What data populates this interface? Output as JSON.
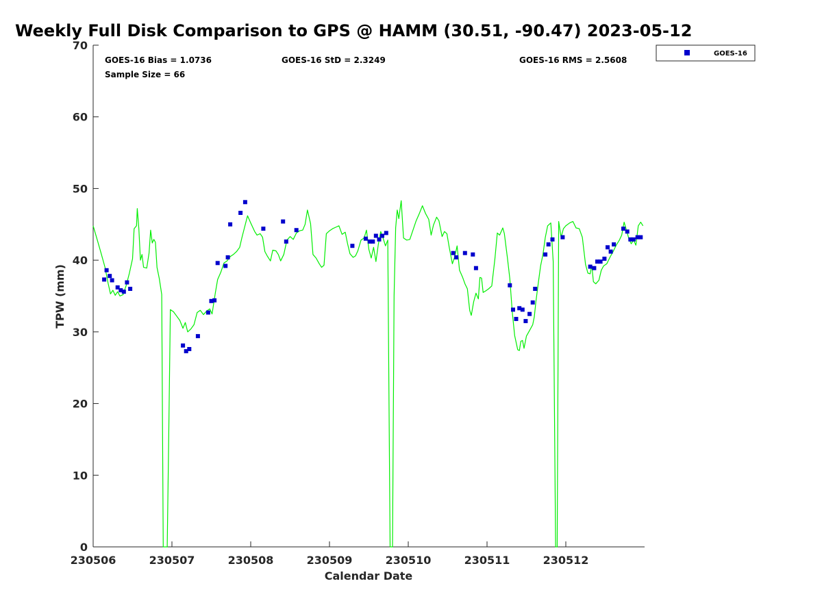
{
  "chart_data": {
    "type": "scatter",
    "title": "Weekly Full Disk Comparison to GPS @ HAMM (30.51, -90.47) 2023-05-12",
    "xlabel": "Calendar Date",
    "ylabel": "TPW (mm)",
    "x_tick_labels": [
      "230506",
      "230507",
      "230508",
      "230509",
      "230510",
      "230511",
      "230512"
    ],
    "y_tick_labels": [
      "0",
      "10",
      "20",
      "30",
      "40",
      "50",
      "60",
      "70"
    ],
    "xlim": [
      0,
      7
    ],
    "ylim": [
      0,
      70
    ],
    "grid": false,
    "legend_position": "top-right",
    "stats": {
      "bias": "GOES-16 Bias = 1.0736",
      "std": "GOES-16 StD = 2.3249",
      "rms": "GOES-16 RMS = 2.5608",
      "sample": "Sample Size = 66"
    },
    "colors": {
      "goes": "#0000cc",
      "gps": "#00ee00",
      "axis": "#262626"
    },
    "series": [
      {
        "name": "GOES-16",
        "marker": "square",
        "points": [
          [
            0.14,
            37.3
          ],
          [
            0.17,
            38.6
          ],
          [
            0.21,
            37.8
          ],
          [
            0.24,
            37.2
          ],
          [
            0.31,
            36.2
          ],
          [
            0.35,
            35.8
          ],
          [
            0.39,
            35.6
          ],
          [
            0.43,
            36.9
          ],
          [
            0.47,
            36.0
          ],
          [
            1.14,
            28.1
          ],
          [
            1.18,
            27.3
          ],
          [
            1.22,
            27.6
          ],
          [
            1.33,
            29.4
          ],
          [
            1.46,
            32.7
          ],
          [
            1.5,
            34.3
          ],
          [
            1.54,
            34.4
          ],
          [
            1.58,
            39.6
          ],
          [
            1.68,
            39.2
          ],
          [
            1.71,
            40.4
          ],
          [
            1.74,
            45.0
          ],
          [
            1.87,
            46.6
          ],
          [
            1.93,
            48.1
          ],
          [
            2.16,
            44.4
          ],
          [
            2.41,
            45.4
          ],
          [
            2.45,
            42.6
          ],
          [
            2.58,
            44.2
          ],
          [
            3.29,
            42.0
          ],
          [
            3.46,
            43.0
          ],
          [
            3.51,
            42.6
          ],
          [
            3.55,
            42.6
          ],
          [
            3.59,
            43.4
          ],
          [
            3.63,
            42.9
          ],
          [
            3.67,
            43.4
          ],
          [
            3.72,
            43.8
          ],
          [
            4.57,
            41.0
          ],
          [
            4.61,
            40.4
          ],
          [
            4.72,
            41.0
          ],
          [
            4.82,
            40.8
          ],
          [
            4.86,
            38.9
          ],
          [
            5.29,
            36.5
          ],
          [
            5.33,
            33.1
          ],
          [
            5.37,
            31.8
          ],
          [
            5.41,
            33.3
          ],
          [
            5.45,
            33.1
          ],
          [
            5.49,
            31.5
          ],
          [
            5.54,
            32.5
          ],
          [
            5.58,
            34.1
          ],
          [
            5.61,
            36.0
          ],
          [
            5.74,
            40.8
          ],
          [
            5.78,
            42.2
          ],
          [
            5.83,
            42.9
          ],
          [
            5.96,
            43.2
          ],
          [
            6.31,
            39.1
          ],
          [
            6.36,
            38.9
          ],
          [
            6.4,
            39.8
          ],
          [
            6.44,
            39.8
          ],
          [
            6.49,
            40.2
          ],
          [
            6.53,
            41.8
          ],
          [
            6.57,
            41.2
          ],
          [
            6.61,
            42.2
          ],
          [
            6.73,
            44.4
          ],
          [
            6.78,
            44.0
          ],
          [
            6.82,
            42.9
          ],
          [
            6.86,
            42.9
          ],
          [
            6.91,
            43.2
          ],
          [
            6.95,
            43.2
          ]
        ]
      },
      {
        "name": "GPS",
        "line": true,
        "points": [
          [
            0.0,
            44.8
          ],
          [
            0.05,
            42.9
          ],
          [
            0.1,
            41.0
          ],
          [
            0.15,
            39.0
          ],
          [
            0.19,
            36.8
          ],
          [
            0.22,
            35.3
          ],
          [
            0.25,
            35.8
          ],
          [
            0.28,
            35.1
          ],
          [
            0.31,
            35.6
          ],
          [
            0.34,
            35.0
          ],
          [
            0.38,
            35.2
          ],
          [
            0.42,
            36.5
          ],
          [
            0.46,
            38.2
          ],
          [
            0.5,
            40.2
          ],
          [
            0.52,
            44.4
          ],
          [
            0.55,
            44.8
          ],
          [
            0.56,
            47.2
          ],
          [
            0.58,
            44.4
          ],
          [
            0.6,
            40.0
          ],
          [
            0.62,
            40.8
          ],
          [
            0.64,
            39.0
          ],
          [
            0.68,
            38.9
          ],
          [
            0.71,
            41.0
          ],
          [
            0.73,
            44.2
          ],
          [
            0.75,
            42.4
          ],
          [
            0.77,
            42.9
          ],
          [
            0.79,
            42.5
          ],
          [
            0.81,
            39.0
          ],
          [
            0.84,
            37.4
          ],
          [
            0.87,
            35.2
          ],
          [
            0.89,
            0.0
          ],
          [
            0.94,
            0.0
          ],
          [
            0.96,
            16.0
          ],
          [
            0.98,
            33.1
          ],
          [
            1.02,
            32.8
          ],
          [
            1.06,
            32.2
          ],
          [
            1.1,
            31.6
          ],
          [
            1.14,
            30.5
          ],
          [
            1.17,
            31.3
          ],
          [
            1.2,
            30.0
          ],
          [
            1.24,
            30.4
          ],
          [
            1.28,
            31.0
          ],
          [
            1.32,
            32.7
          ],
          [
            1.36,
            33.0
          ],
          [
            1.4,
            32.4
          ],
          [
            1.44,
            32.9
          ],
          [
            1.48,
            33.2
          ],
          [
            1.51,
            32.5
          ],
          [
            1.55,
            35.4
          ],
          [
            1.58,
            37.3
          ],
          [
            1.62,
            38.3
          ],
          [
            1.66,
            39.6
          ],
          [
            1.7,
            39.9
          ],
          [
            1.74,
            40.5
          ],
          [
            1.78,
            40.8
          ],
          [
            1.82,
            41.2
          ],
          [
            1.86,
            41.8
          ],
          [
            1.89,
            43.2
          ],
          [
            1.92,
            44.5
          ],
          [
            1.96,
            46.2
          ],
          [
            2.0,
            45.2
          ],
          [
            2.05,
            44.0
          ],
          [
            2.08,
            43.5
          ],
          [
            2.12,
            43.7
          ],
          [
            2.15,
            43.2
          ],
          [
            2.18,
            41.2
          ],
          [
            2.21,
            40.6
          ],
          [
            2.25,
            39.9
          ],
          [
            2.28,
            41.4
          ],
          [
            2.32,
            41.3
          ],
          [
            2.35,
            40.8
          ],
          [
            2.38,
            39.9
          ],
          [
            2.42,
            40.8
          ],
          [
            2.46,
            42.8
          ],
          [
            2.5,
            43.3
          ],
          [
            2.54,
            42.9
          ],
          [
            2.58,
            43.8
          ],
          [
            2.62,
            44.1
          ],
          [
            2.66,
            44.2
          ],
          [
            2.69,
            45.0
          ],
          [
            2.72,
            47.0
          ],
          [
            2.76,
            45.1
          ],
          [
            2.79,
            40.8
          ],
          [
            2.83,
            40.3
          ],
          [
            2.87,
            39.5
          ],
          [
            2.9,
            39.0
          ],
          [
            2.93,
            39.3
          ],
          [
            2.96,
            43.7
          ],
          [
            3.0,
            44.1
          ],
          [
            3.04,
            44.4
          ],
          [
            3.08,
            44.6
          ],
          [
            3.12,
            44.8
          ],
          [
            3.16,
            43.6
          ],
          [
            3.2,
            43.9
          ],
          [
            3.23,
            42.3
          ],
          [
            3.26,
            40.9
          ],
          [
            3.3,
            40.4
          ],
          [
            3.33,
            40.6
          ],
          [
            3.36,
            41.3
          ],
          [
            3.4,
            42.8
          ],
          [
            3.44,
            43.1
          ],
          [
            3.47,
            44.2
          ],
          [
            3.5,
            41.5
          ],
          [
            3.53,
            40.3
          ],
          [
            3.56,
            41.8
          ],
          [
            3.59,
            39.8
          ],
          [
            3.62,
            42.2
          ],
          [
            3.65,
            44.0
          ],
          [
            3.68,
            43.1
          ],
          [
            3.71,
            42.0
          ],
          [
            3.74,
            42.8
          ],
          [
            3.77,
            0.0
          ],
          [
            3.8,
            0.0
          ],
          [
            3.82,
            35.0
          ],
          [
            3.84,
            44.5
          ],
          [
            3.86,
            47.0
          ],
          [
            3.88,
            45.8
          ],
          [
            3.91,
            48.3
          ],
          [
            3.94,
            43.1
          ],
          [
            3.98,
            42.8
          ],
          [
            4.02,
            42.9
          ],
          [
            4.06,
            44.2
          ],
          [
            4.1,
            45.5
          ],
          [
            4.14,
            46.5
          ],
          [
            4.18,
            47.6
          ],
          [
            4.22,
            46.5
          ],
          [
            4.26,
            45.7
          ],
          [
            4.29,
            43.5
          ],
          [
            4.32,
            44.9
          ],
          [
            4.36,
            46.0
          ],
          [
            4.39,
            45.5
          ],
          [
            4.43,
            43.3
          ],
          [
            4.46,
            44.0
          ],
          [
            4.49,
            43.7
          ],
          [
            4.52,
            41.8
          ],
          [
            4.56,
            39.5
          ],
          [
            4.59,
            40.5
          ],
          [
            4.62,
            42.0
          ],
          [
            4.65,
            38.6
          ],
          [
            4.69,
            37.6
          ],
          [
            4.72,
            36.7
          ],
          [
            4.75,
            36.0
          ],
          [
            4.78,
            33.0
          ],
          [
            4.8,
            32.3
          ],
          [
            4.83,
            34.2
          ],
          [
            4.86,
            35.4
          ],
          [
            4.89,
            34.6
          ],
          [
            4.91,
            37.6
          ],
          [
            4.93,
            37.5
          ],
          [
            4.95,
            35.5
          ],
          [
            4.98,
            35.7
          ],
          [
            5.02,
            36.0
          ],
          [
            5.06,
            36.4
          ],
          [
            5.1,
            40.2
          ],
          [
            5.13,
            43.8
          ],
          [
            5.16,
            43.5
          ],
          [
            5.2,
            44.5
          ],
          [
            5.22,
            43.7
          ],
          [
            5.26,
            40.2
          ],
          [
            5.29,
            37.4
          ],
          [
            5.32,
            32.8
          ],
          [
            5.35,
            29.5
          ],
          [
            5.39,
            27.5
          ],
          [
            5.41,
            27.4
          ],
          [
            5.43,
            28.7
          ],
          [
            5.45,
            28.8
          ],
          [
            5.47,
            27.7
          ],
          [
            5.5,
            29.4
          ],
          [
            5.54,
            30.2
          ],
          [
            5.58,
            31.0
          ],
          [
            5.6,
            32.1
          ],
          [
            5.62,
            34.2
          ],
          [
            5.65,
            36.8
          ],
          [
            5.68,
            39.2
          ],
          [
            5.71,
            40.8
          ],
          [
            5.74,
            43.2
          ],
          [
            5.77,
            44.8
          ],
          [
            5.81,
            45.2
          ],
          [
            5.84,
            39.8
          ],
          [
            5.87,
            0.0
          ],
          [
            5.89,
            0.0
          ],
          [
            5.91,
            45.4
          ],
          [
            5.94,
            43.2
          ],
          [
            5.97,
            44.4
          ],
          [
            6.0,
            44.8
          ],
          [
            6.05,
            45.2
          ],
          [
            6.09,
            45.4
          ],
          [
            6.13,
            44.5
          ],
          [
            6.17,
            44.4
          ],
          [
            6.21,
            43.2
          ],
          [
            6.25,
            39.4
          ],
          [
            6.28,
            38.2
          ],
          [
            6.31,
            38.1
          ],
          [
            6.33,
            39.3
          ],
          [
            6.35,
            37.0
          ],
          [
            6.38,
            36.7
          ],
          [
            6.42,
            37.2
          ],
          [
            6.45,
            38.6
          ],
          [
            6.48,
            39.2
          ],
          [
            6.52,
            39.5
          ],
          [
            6.56,
            40.4
          ],
          [
            6.6,
            41.2
          ],
          [
            6.64,
            42.1
          ],
          [
            6.68,
            42.8
          ],
          [
            6.71,
            43.5
          ],
          [
            6.74,
            45.3
          ],
          [
            6.77,
            44.2
          ],
          [
            6.8,
            43.0
          ],
          [
            6.83,
            42.3
          ],
          [
            6.86,
            42.8
          ],
          [
            6.89,
            42.1
          ],
          [
            6.92,
            44.8
          ],
          [
            6.95,
            45.3
          ],
          [
            6.98,
            44.8
          ]
        ]
      }
    ]
  }
}
